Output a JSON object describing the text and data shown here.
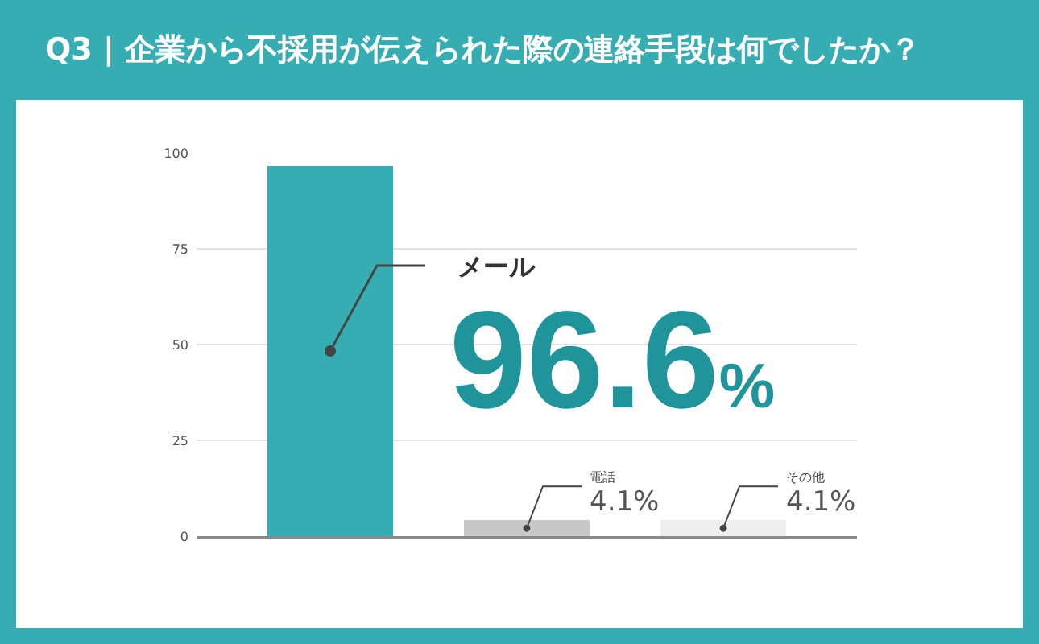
{
  "chart_data": {
    "type": "bar",
    "title": "Q3 | 企業から不採用が伝えられた際の連絡手段は何でしたか？",
    "categories": [
      "メール",
      "電話",
      "その他"
    ],
    "values": [
      96.6,
      4.1,
      4.1
    ],
    "colors": [
      "#35adb3",
      "#c8c8c8",
      "#eeeeee"
    ],
    "value_labels": [
      "96.6%",
      "4.1%",
      "4.1%"
    ],
    "ylim": [
      0,
      100
    ],
    "yticks": [
      0,
      25,
      50,
      75,
      100
    ],
    "grid": "y",
    "tick_labels": "y"
  }
}
